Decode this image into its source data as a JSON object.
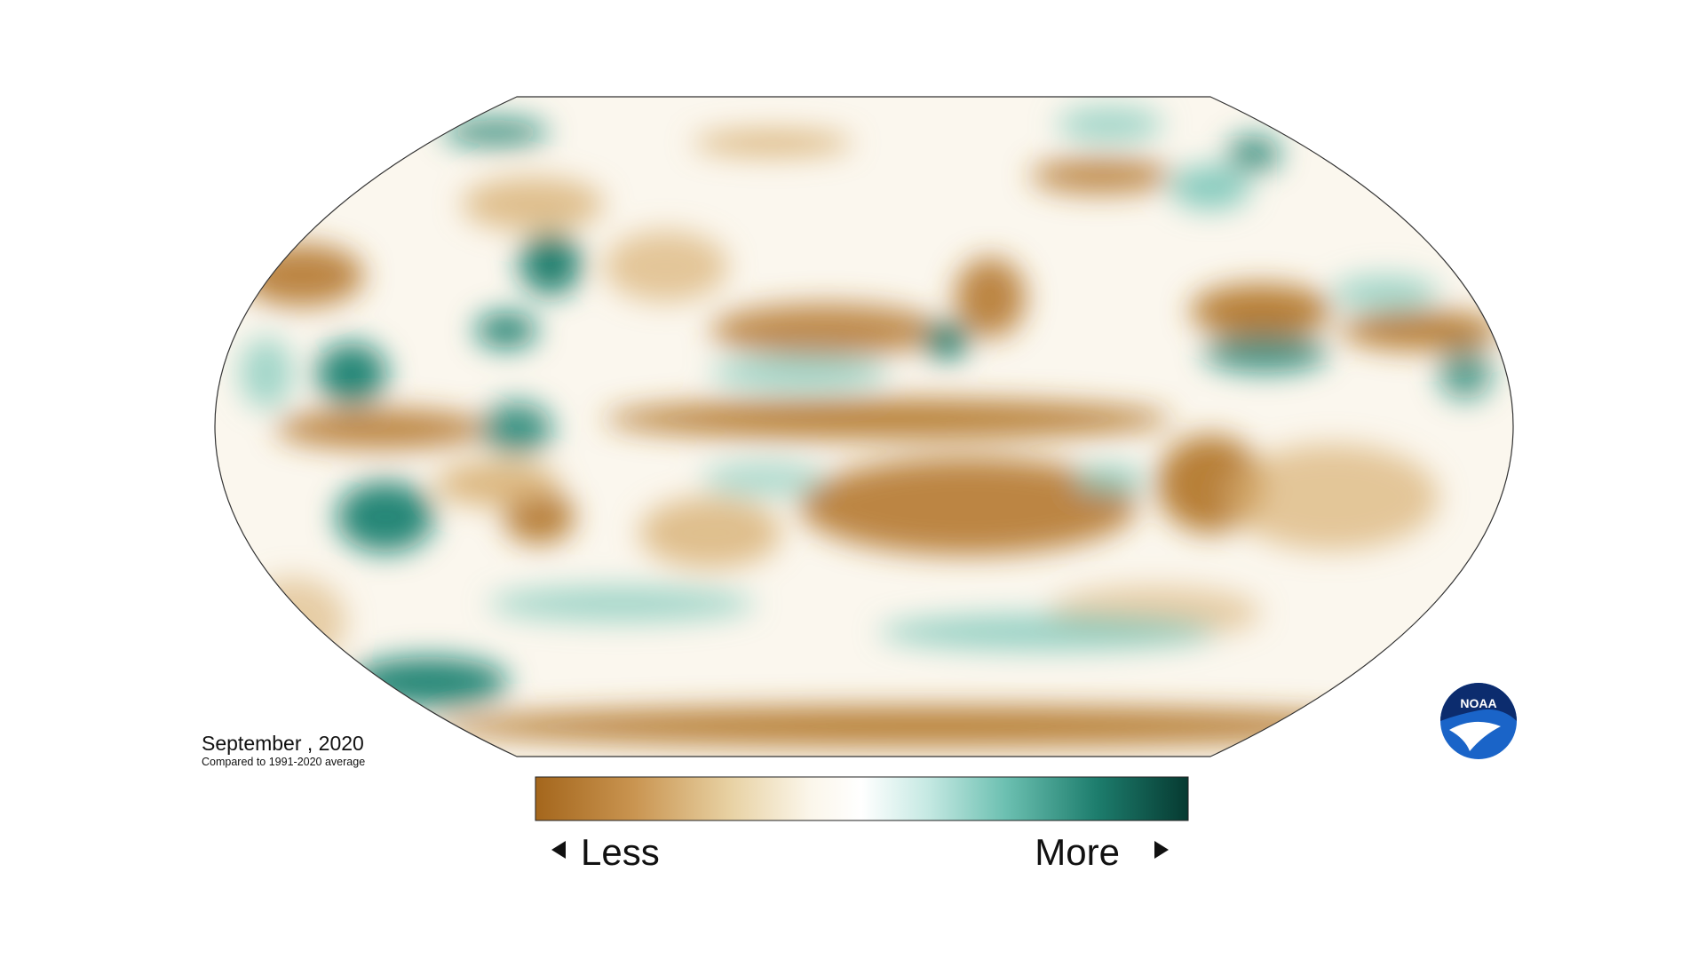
{
  "map": {
    "date": "September , 2020",
    "subtitle": "Compared to 1991-2020 average",
    "legend": {
      "low": "Less",
      "high": "More"
    }
  },
  "logo": "NOAA"
}
